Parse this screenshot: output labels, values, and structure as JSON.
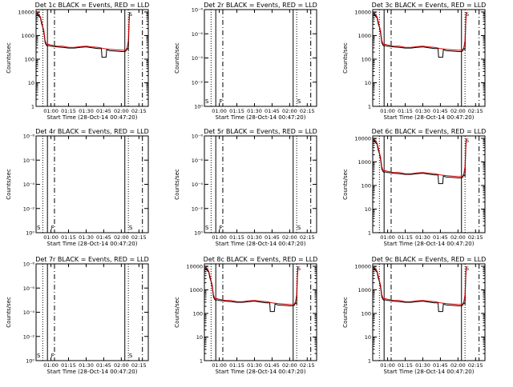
{
  "chart_data": [
    {
      "id": "1c",
      "type": "line",
      "title": "Det 1c BLACK = Events, RED = LLD",
      "flat": false
    },
    {
      "id": "2r",
      "type": "line",
      "title": "Det 2r BLACK = Events, RED = LLD",
      "flat": true
    },
    {
      "id": "3c",
      "type": "line",
      "title": "Det 3c BLACK = Events, RED = LLD",
      "flat": false
    },
    {
      "id": "4r",
      "type": "line",
      "title": "Det 4r BLACK = Events, RED = LLD",
      "flat": true
    },
    {
      "id": "5r",
      "type": "line",
      "title": "Det 5r BLACK = Events, RED = LLD",
      "flat": true
    },
    {
      "id": "6c",
      "type": "line",
      "title": "Det 6c BLACK = Events, RED = LLD",
      "flat": false
    },
    {
      "id": "7r",
      "type": "line",
      "title": "Det 7r BLACK = Events, RED = LLD",
      "flat": true
    },
    {
      "id": "8c",
      "type": "line",
      "title": "Det 8c BLACK = Events, RED = LLD",
      "flat": false
    },
    {
      "id": "9c",
      "type": "line",
      "title": "Det 9c BLACK = Events, RED = LLD",
      "flat": false
    }
  ],
  "shared": {
    "xlabel": "Start Time (28-Oct-14 00:47:20)",
    "ylabel": "Counts/sec",
    "xticks": [
      "01:00",
      "01:15",
      "01:30",
      "01:45",
      "02:00",
      "02:15"
    ],
    "xtick_minutes": [
      60,
      75,
      90,
      105,
      120,
      135
    ],
    "xlim_minutes": [
      47.3,
      143
    ],
    "yticks_active": [
      "1",
      "10",
      "100",
      "1000",
      "10000"
    ],
    "yticks_active_log": [
      0,
      1,
      2,
      3,
      4
    ],
    "ylim_active_log": [
      0,
      4.1
    ],
    "yticks_flat": [
      "10⁰",
      "10⁻²",
      "10⁻⁴",
      "10⁻⁶",
      "10⁻⁸"
    ],
    "yticks_flat_pos": [
      0,
      0.25,
      0.5,
      0.75,
      1.0
    ],
    "vlines_solid": [
      57,
      123
    ],
    "vlines_dotted": [
      53,
      126
    ],
    "vlines_dashed": [
      63,
      138
    ],
    "flat_marks": [
      "S",
      "F",
      "S"
    ],
    "flat_mark_minutes": [
      48,
      60,
      126.5
    ],
    "colors": {
      "events": "#000000",
      "lld": "#dd0000",
      "axes": "#000000"
    },
    "events_series": {
      "name": "Events",
      "x": [
        47.3,
        48,
        49,
        50,
        51,
        52,
        53,
        54,
        55,
        56,
        57,
        58,
        60,
        65,
        70,
        75,
        80,
        85,
        90,
        95,
        100,
        103,
        103.5,
        107,
        107.5,
        110,
        115,
        120,
        123,
        124,
        125,
        126,
        126.5,
        127
      ],
      "y": [
        3.9,
        3.9,
        3.88,
        3.8,
        3.75,
        3.5,
        3.35,
        3.1,
        2.7,
        2.6,
        2.55,
        2.58,
        2.55,
        2.52,
        2.5,
        2.47,
        2.47,
        2.5,
        2.52,
        2.48,
        2.45,
        2.45,
        2.08,
        2.08,
        2.4,
        2.36,
        2.34,
        2.32,
        2.32,
        2.35,
        2.45,
        2.4,
        3.4,
        3.95
      ]
    },
    "lld_series": {
      "name": "LLD",
      "x": [
        47.3,
        48,
        49,
        50,
        51,
        52,
        53,
        54,
        55,
        56,
        57,
        58,
        60,
        65,
        70,
        75,
        80,
        85,
        90,
        95,
        100,
        105,
        110,
        115,
        120,
        123,
        124,
        125,
        126,
        126.5,
        127
      ],
      "y": [
        3.95,
        3.95,
        3.92,
        3.85,
        3.8,
        3.6,
        3.4,
        3.2,
        2.8,
        2.65,
        2.62,
        2.63,
        2.6,
        2.55,
        2.55,
        2.5,
        2.5,
        2.53,
        2.55,
        2.52,
        2.5,
        2.45,
        2.42,
        2.4,
        2.38,
        2.38,
        2.4,
        2.5,
        2.8,
        3.5,
        4.0
      ]
    }
  }
}
